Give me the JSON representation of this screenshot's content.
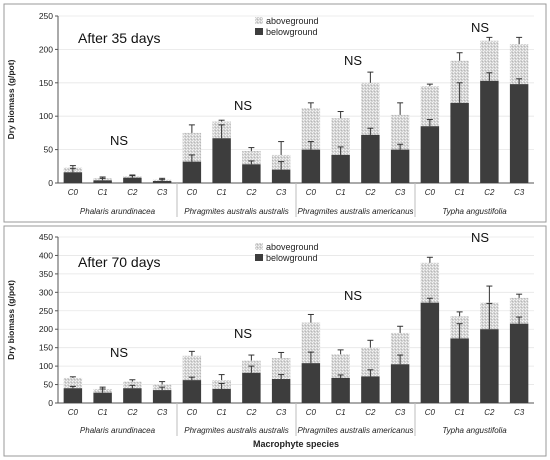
{
  "chart_data": [
    {
      "type": "bar",
      "title": "After 35 days",
      "ylabel": "Dry biomass (g/pot)",
      "xlabel": "",
      "ylim": [
        0,
        250
      ],
      "yticks": [
        0,
        50,
        100,
        150,
        200,
        250
      ],
      "grid": true,
      "legend_position": "top-center",
      "stacked": true,
      "groups": [
        {
          "name": "Phalaris arundinacea",
          "annotation": "NS"
        },
        {
          "name": "Phragmites australis australis",
          "annotation": "NS"
        },
        {
          "name": "Phragmites australis americanus",
          "annotation": "NS"
        },
        {
          "name": "Typha angustifolia",
          "annotation": "NS"
        }
      ],
      "categories": [
        "C0",
        "C1",
        "C2",
        "C3",
        "C0",
        "C1",
        "C2",
        "C3",
        "C0",
        "C1",
        "C2",
        "C3",
        "C0",
        "C1",
        "C2",
        "C3"
      ],
      "series": [
        {
          "name": "belowground",
          "values": [
            16,
            4,
            8,
            3,
            32,
            67,
            28,
            20,
            50,
            42,
            72,
            50,
            85,
            120,
            153,
            148
          ],
          "errors": [
            6,
            3,
            3,
            2,
            10,
            20,
            5,
            12,
            12,
            12,
            10,
            8,
            10,
            30,
            12,
            8
          ]
        },
        {
          "name": "aboveground",
          "totals": [
            23,
            7,
            10,
            5,
            75,
            92,
            48,
            42,
            112,
            97,
            150,
            102,
            145,
            183,
            213,
            208
          ],
          "errors": [
            3,
            2,
            2,
            2,
            12,
            2,
            5,
            20,
            8,
            10,
            16,
            18,
            3,
            12,
            5,
            10
          ]
        }
      ]
    },
    {
      "type": "bar",
      "title": "After 70 days",
      "ylabel": "Dry biomass (g/pot)",
      "xlabel": "Macrophyte species",
      "ylim": [
        0,
        450
      ],
      "yticks": [
        0,
        50,
        100,
        150,
        200,
        250,
        300,
        350,
        400,
        450
      ],
      "grid": true,
      "legend_position": "top-center",
      "stacked": true,
      "groups": [
        {
          "name": "Phalaris arundinacea",
          "annotation": "NS"
        },
        {
          "name": "Phragmites australis australis",
          "annotation": "NS"
        },
        {
          "name": "Phragmites australis americanus",
          "annotation": "NS"
        },
        {
          "name": "Typha angustifolia",
          "annotation": "NS"
        }
      ],
      "categories": [
        "C0",
        "C1",
        "C2",
        "C3",
        "C0",
        "C1",
        "C2",
        "C3",
        "C0",
        "C1",
        "C2",
        "C3",
        "C0",
        "C1",
        "C2",
        "C3"
      ],
      "series": [
        {
          "name": "belowground",
          "values": [
            40,
            28,
            40,
            35,
            62,
            38,
            82,
            65,
            108,
            68,
            72,
            105,
            272,
            175,
            200,
            215
          ],
          "errors": [
            5,
            10,
            8,
            8,
            8,
            15,
            18,
            12,
            30,
            8,
            18,
            25,
            12,
            40,
            70,
            18
          ]
        },
        {
          "name": "aboveground",
          "totals": [
            68,
            38,
            58,
            50,
            128,
            62,
            115,
            122,
            218,
            132,
            150,
            190,
            380,
            235,
            272,
            285
          ],
          "errors": [
            3,
            5,
            5,
            8,
            12,
            15,
            15,
            15,
            22,
            12,
            20,
            18,
            15,
            12,
            45,
            10
          ]
        }
      ]
    }
  ],
  "colors": {
    "belowground": "#3d3d3d",
    "aboveground_base": "#d6d6d6",
    "aboveground_dot": "#f4f4f4"
  }
}
